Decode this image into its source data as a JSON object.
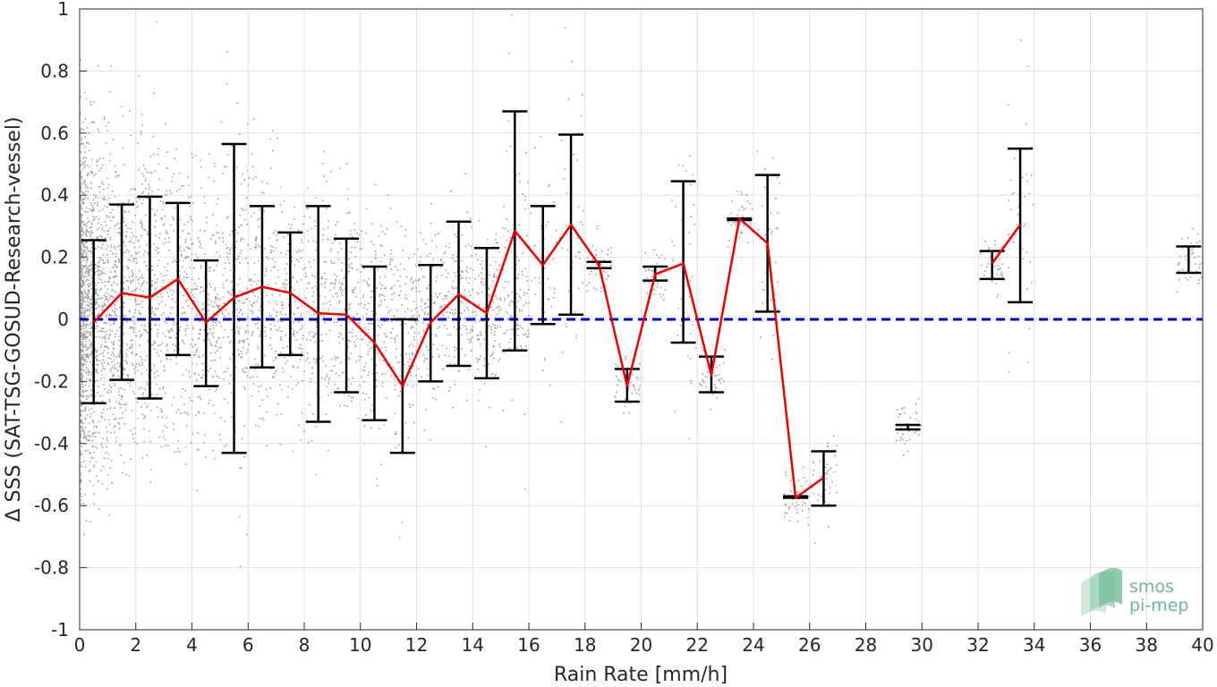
{
  "chart_data": {
    "type": "line",
    "title": "",
    "xlabel": "Rain Rate [mm/h]",
    "ylabel": "Δ SSS (SAT-TSG-GOSUD-Research-vessel)",
    "xlim": [
      0,
      40
    ],
    "ylim": [
      -1,
      1
    ],
    "xticks": [
      "0",
      "2",
      "4",
      "6",
      "8",
      "10",
      "12",
      "14",
      "16",
      "18",
      "20",
      "22",
      "24",
      "26",
      "28",
      "30",
      "32",
      "34",
      "36",
      "38",
      "40"
    ],
    "yticks": [
      "-1",
      "-0.8",
      "-0.6",
      "-0.4",
      "-0.2",
      "0",
      "0.2",
      "0.4",
      "0.6",
      "0.8",
      "1"
    ],
    "grid": true,
    "reference_line": {
      "y": 0,
      "color": "#0000cc",
      "style": "dashed"
    },
    "mean_line": {
      "color": "#ee0000",
      "segments": [
        [
          [
            0.5,
            -0.01
          ],
          [
            1.5,
            0.085
          ],
          [
            2.5,
            0.07
          ],
          [
            3.5,
            0.13
          ],
          [
            4.5,
            -0.01
          ],
          [
            5.5,
            0.07
          ],
          [
            6.5,
            0.105
          ],
          [
            7.5,
            0.085
          ],
          [
            8.5,
            0.02
          ],
          [
            9.5,
            0.015
          ],
          [
            10.5,
            -0.075
          ],
          [
            11.5,
            -0.215
          ],
          [
            12.5,
            -0.01
          ],
          [
            13.5,
            0.08
          ],
          [
            14.5,
            0.02
          ],
          [
            15.5,
            0.285
          ],
          [
            16.5,
            0.175
          ],
          [
            17.5,
            0.305
          ],
          [
            18.5,
            0.175
          ],
          [
            19.5,
            -0.215
          ],
          [
            20.5,
            0.145
          ],
          [
            21.5,
            0.18
          ],
          [
            22.5,
            -0.18
          ],
          [
            23.5,
            0.325
          ],
          [
            24.5,
            0.245
          ],
          [
            25.5,
            -0.575
          ],
          [
            26.5,
            -0.51
          ]
        ],
        [
          [
            32.5,
            0.18
          ],
          [
            33.5,
            0.305
          ]
        ]
      ]
    },
    "error_bars": {
      "color": "#000000",
      "x": [
        0.5,
        1.5,
        2.5,
        3.5,
        4.5,
        5.5,
        6.5,
        7.5,
        8.5,
        9.5,
        10.5,
        11.5,
        12.5,
        13.5,
        14.5,
        15.5,
        16.5,
        17.5,
        18.5,
        19.5,
        20.5,
        21.5,
        22.5,
        23.5,
        24.5,
        25.5,
        26.5,
        29.5,
        32.5,
        33.5,
        39.5
      ],
      "upper": [
        0.255,
        0.37,
        0.395,
        0.375,
        0.19,
        0.565,
        0.365,
        0.28,
        0.365,
        0.26,
        0.17,
        0.0,
        0.175,
        0.315,
        0.23,
        0.67,
        0.365,
        0.595,
        0.185,
        -0.16,
        0.17,
        0.445,
        -0.12,
        0.325,
        0.465,
        -0.57,
        -0.425,
        -0.34,
        0.22,
        0.55,
        0.235
      ],
      "lower": [
        -0.27,
        -0.195,
        -0.255,
        -0.115,
        -0.215,
        -0.43,
        -0.155,
        -0.115,
        -0.33,
        -0.235,
        -0.325,
        -0.43,
        -0.2,
        -0.15,
        -0.19,
        -0.1,
        -0.015,
        0.015,
        0.165,
        -0.265,
        0.125,
        -0.075,
        -0.235,
        0.32,
        0.025,
        -0.575,
        -0.6,
        -0.355,
        0.13,
        0.055,
        0.15
      ]
    },
    "scatter_color": "#808080",
    "logo": {
      "line1": "smos",
      "line2": "pi-mep"
    }
  }
}
